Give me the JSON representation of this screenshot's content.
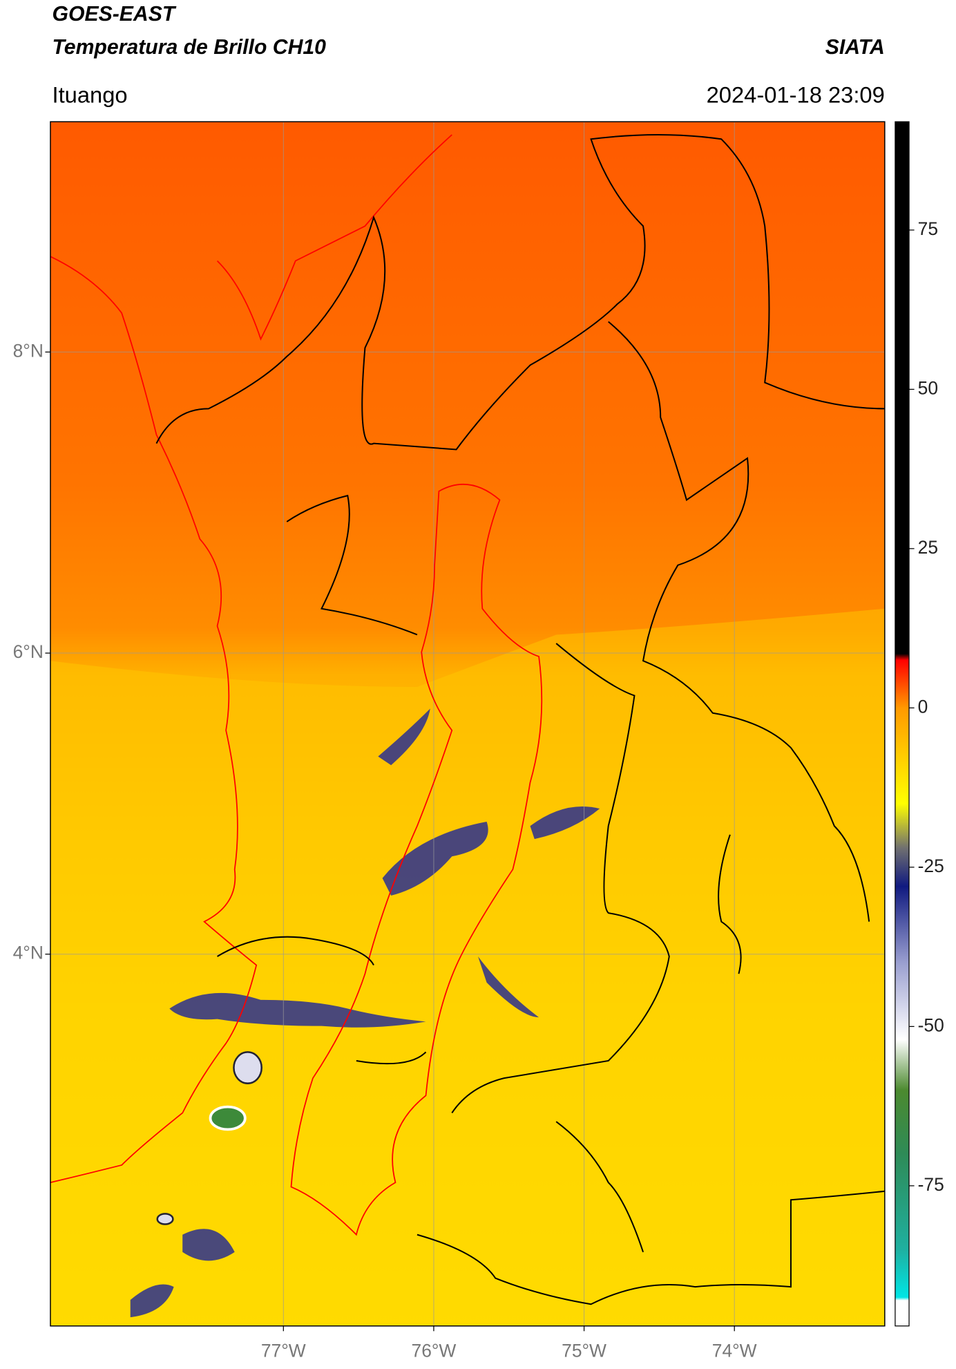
{
  "header": {
    "title_line1": "GOES-EAST",
    "title_line2": "Temperatura de Brillo CH10",
    "organization": "SIATA",
    "location": "Ituango",
    "datetime": "2024-01-18 23:09"
  },
  "map": {
    "xlim": [
      -78.55,
      -73.0
    ],
    "ylim": [
      1.53,
      9.53
    ],
    "grid": true,
    "lat_ticks": [
      {
        "value": 8,
        "label": "8°N"
      },
      {
        "value": 6,
        "label": "6°N"
      },
      {
        "value": 4,
        "label": "4°N"
      }
    ],
    "lon_ticks": [
      {
        "value": -77,
        "label": "77°W"
      },
      {
        "value": -76,
        "label": "76°W"
      },
      {
        "value": -75,
        "label": "75°W"
      },
      {
        "value": -74,
        "label": "74°W"
      }
    ]
  },
  "colorbar": {
    "lim": [
      -97,
      92
    ],
    "ticks": [
      75,
      50,
      25,
      0,
      -25,
      -50,
      -75
    ],
    "stops": [
      {
        "value": -97,
        "color": "#ffffff"
      },
      {
        "value": -93,
        "color": "#ffffff"
      },
      {
        "value": -92.5,
        "color": "#00e5e5"
      },
      {
        "value": -85,
        "color": "#1fb0a0"
      },
      {
        "value": -70,
        "color": "#2e8b57"
      },
      {
        "value": -60,
        "color": "#4c8a2f"
      },
      {
        "value": -52,
        "color": "#ffffff"
      },
      {
        "value": -40,
        "color": "#9a9fd0"
      },
      {
        "value": -28,
        "color": "#101a80"
      },
      {
        "value": -22,
        "color": "#707070"
      },
      {
        "value": -15,
        "color": "#ffff00"
      },
      {
        "value": 0,
        "color": "#ff9900"
      },
      {
        "value": 7.5,
        "color": "#ff0000"
      },
      {
        "value": 8.5,
        "color": "#000000"
      },
      {
        "value": 92,
        "color": "#000000"
      }
    ]
  }
}
